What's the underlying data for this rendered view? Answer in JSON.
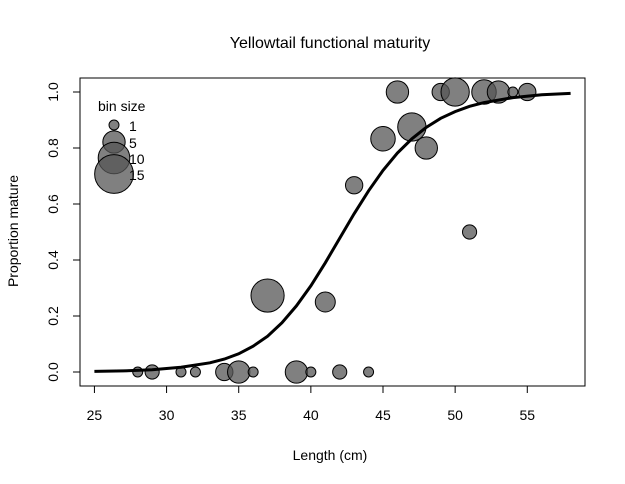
{
  "chart_data": {
    "type": "scatter",
    "title": "Yellowtail functional maturity",
    "xlabel": "Length (cm)",
    "ylabel": "Proportion mature",
    "xlim": [
      24,
      59
    ],
    "ylim": [
      -0.05,
      1.05
    ],
    "xticks": [
      25,
      30,
      35,
      40,
      45,
      50,
      55
    ],
    "yticks": [
      0.0,
      0.2,
      0.4,
      0.6,
      0.8,
      1.0
    ],
    "xtick_labels": [
      "25",
      "30",
      "35",
      "40",
      "45",
      "50",
      "55"
    ],
    "ytick_labels": [
      "0.0",
      "0.2",
      "0.4",
      "0.6",
      "0.8",
      "1.0"
    ],
    "grid": false,
    "point_color": "#555555",
    "point_opacity": 0.75,
    "legend": {
      "title": "bin size",
      "placement": "top-left",
      "entries": [
        {
          "label": "1",
          "size": 1
        },
        {
          "label": "5",
          "size": 5
        },
        {
          "label": "10",
          "size": 10
        },
        {
          "label": "15",
          "size": 15
        }
      ]
    },
    "points": [
      {
        "x": 28,
        "y": 0.0,
        "n": 1
      },
      {
        "x": 29,
        "y": 0.0,
        "n": 2
      },
      {
        "x": 31,
        "y": 0.0,
        "n": 1
      },
      {
        "x": 32,
        "y": 0.0,
        "n": 1
      },
      {
        "x": 34,
        "y": 0.0,
        "n": 3
      },
      {
        "x": 35,
        "y": 0.0,
        "n": 5
      },
      {
        "x": 36,
        "y": 0.0,
        "n": 1
      },
      {
        "x": 37,
        "y": 0.273,
        "n": 11
      },
      {
        "x": 39,
        "y": 0.0,
        "n": 5
      },
      {
        "x": 40,
        "y": 0.0,
        "n": 1
      },
      {
        "x": 41,
        "y": 0.25,
        "n": 4
      },
      {
        "x": 42,
        "y": 0.0,
        "n": 2
      },
      {
        "x": 43,
        "y": 0.667,
        "n": 3
      },
      {
        "x": 44,
        "y": 0.0,
        "n": 1
      },
      {
        "x": 45,
        "y": 0.833,
        "n": 6
      },
      {
        "x": 46,
        "y": 1.0,
        "n": 5
      },
      {
        "x": 47,
        "y": 0.875,
        "n": 8
      },
      {
        "x": 48,
        "y": 0.8,
        "n": 5
      },
      {
        "x": 49,
        "y": 1.0,
        "n": 3
      },
      {
        "x": 50,
        "y": 1.0,
        "n": 8
      },
      {
        "x": 51,
        "y": 0.5,
        "n": 2
      },
      {
        "x": 52,
        "y": 1.0,
        "n": 6
      },
      {
        "x": 53,
        "y": 1.0,
        "n": 5
      },
      {
        "x": 54,
        "y": 1.0,
        "n": 1
      },
      {
        "x": 55,
        "y": 1.0,
        "n": 3
      }
    ],
    "curve": {
      "type": "logistic",
      "x": [
        25,
        27,
        29,
        31,
        33,
        34,
        35,
        36,
        37,
        38,
        39,
        40,
        41,
        42,
        43,
        44,
        45,
        46,
        47,
        48,
        49,
        50,
        51,
        52,
        54,
        56,
        58
      ],
      "y": [
        0.002,
        0.004,
        0.008,
        0.017,
        0.033,
        0.046,
        0.065,
        0.092,
        0.128,
        0.176,
        0.236,
        0.308,
        0.39,
        0.478,
        0.565,
        0.647,
        0.72,
        0.782,
        0.833,
        0.874,
        0.906,
        0.93,
        0.949,
        0.962,
        0.98,
        0.99,
        0.995
      ]
    }
  }
}
